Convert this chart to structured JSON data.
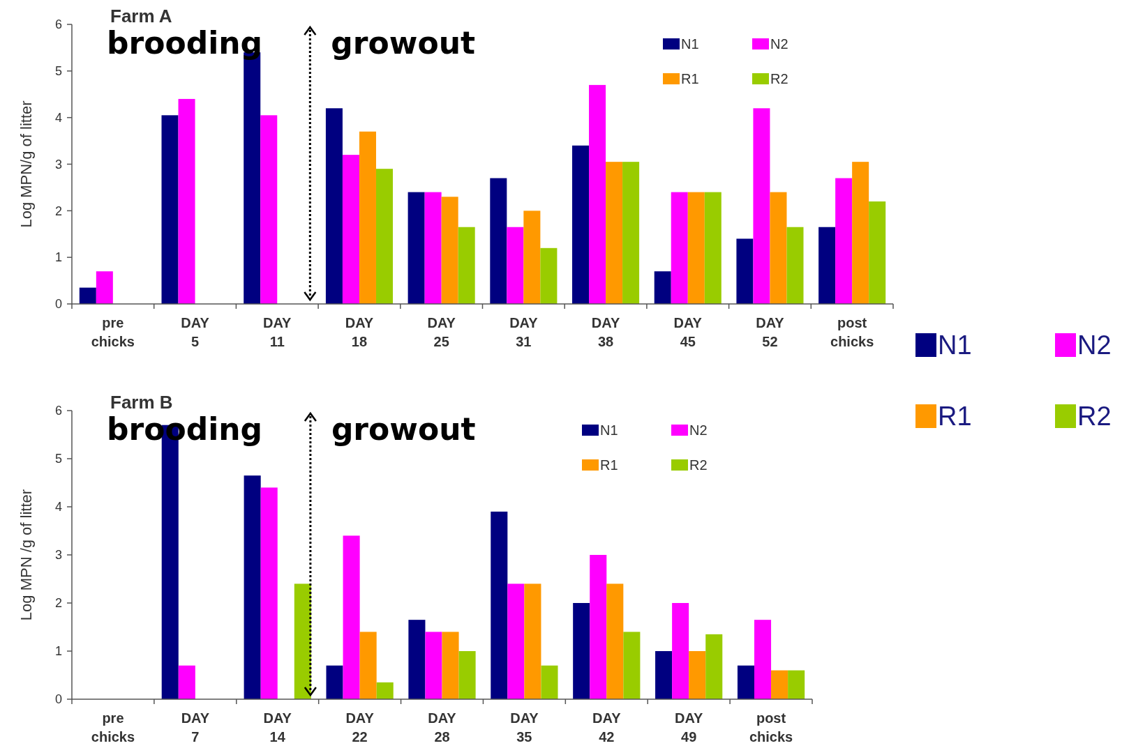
{
  "chart_data": [
    {
      "type": "bar",
      "title": "Farm A",
      "ylabel": "Log MPN/g of litter",
      "annotations": [
        "brooding",
        "growout"
      ],
      "categories": [
        "pre chicks",
        "DAY 5",
        "DAY 11",
        "DAY 18",
        "DAY 25",
        "DAY 31",
        "DAY 38",
        "DAY 45",
        "DAY 52",
        "post chicks"
      ],
      "series": [
        {
          "name": "N1",
          "color": "#000080",
          "values": [
            0.35,
            4.05,
            5.4,
            4.2,
            2.4,
            2.7,
            3.4,
            0.7,
            1.4,
            1.65
          ]
        },
        {
          "name": "N2",
          "color": "#ff00ff",
          "values": [
            0.7,
            4.4,
            4.05,
            3.2,
            2.4,
            1.65,
            4.7,
            2.4,
            4.2,
            2.7
          ]
        },
        {
          "name": "R1",
          "color": "#ff9900",
          "values": [
            null,
            null,
            null,
            3.7,
            2.3,
            2.0,
            3.05,
            2.4,
            2.4,
            3.05
          ]
        },
        {
          "name": "R2",
          "color": "#99cc00",
          "values": [
            null,
            null,
            null,
            2.9,
            1.65,
            1.2,
            3.05,
            2.4,
            1.65,
            2.2
          ]
        }
      ],
      "ylim": [
        0,
        6
      ],
      "yticks": [
        0,
        1,
        2,
        3,
        4,
        5,
        6
      ],
      "legend": "top right",
      "grid": false
    },
    {
      "type": "bar",
      "title": "Farm B",
      "ylabel": "Log MPN /g of litter",
      "annotations": [
        "brooding",
        "growout"
      ],
      "categories": [
        "pre chicks",
        "DAY 7",
        "DAY 14",
        "DAY 22",
        "DAY 28",
        "DAY 35",
        "DAY 42",
        "DAY 49",
        "post chicks"
      ],
      "series": [
        {
          "name": "N1",
          "color": "#000080",
          "values": [
            null,
            5.7,
            4.65,
            0.7,
            1.65,
            3.9,
            2.0,
            1.0,
            0.7
          ]
        },
        {
          "name": "N2",
          "color": "#ff00ff",
          "values": [
            null,
            0.7,
            4.4,
            3.4,
            1.4,
            2.4,
            3.0,
            2.0,
            1.65
          ]
        },
        {
          "name": "R1",
          "color": "#ff9900",
          "values": [
            null,
            null,
            null,
            1.4,
            1.4,
            2.4,
            2.4,
            1.0,
            0.6
          ]
        },
        {
          "name": "R2",
          "color": "#99cc00",
          "values": [
            null,
            null,
            2.4,
            0.35,
            1.0,
            0.7,
            1.4,
            1.35,
            0.6
          ]
        }
      ],
      "ylim": [
        0,
        6
      ],
      "yticks": [
        0,
        1,
        2,
        3,
        4,
        5,
        6
      ],
      "legend": "top right",
      "grid": false
    }
  ]
}
